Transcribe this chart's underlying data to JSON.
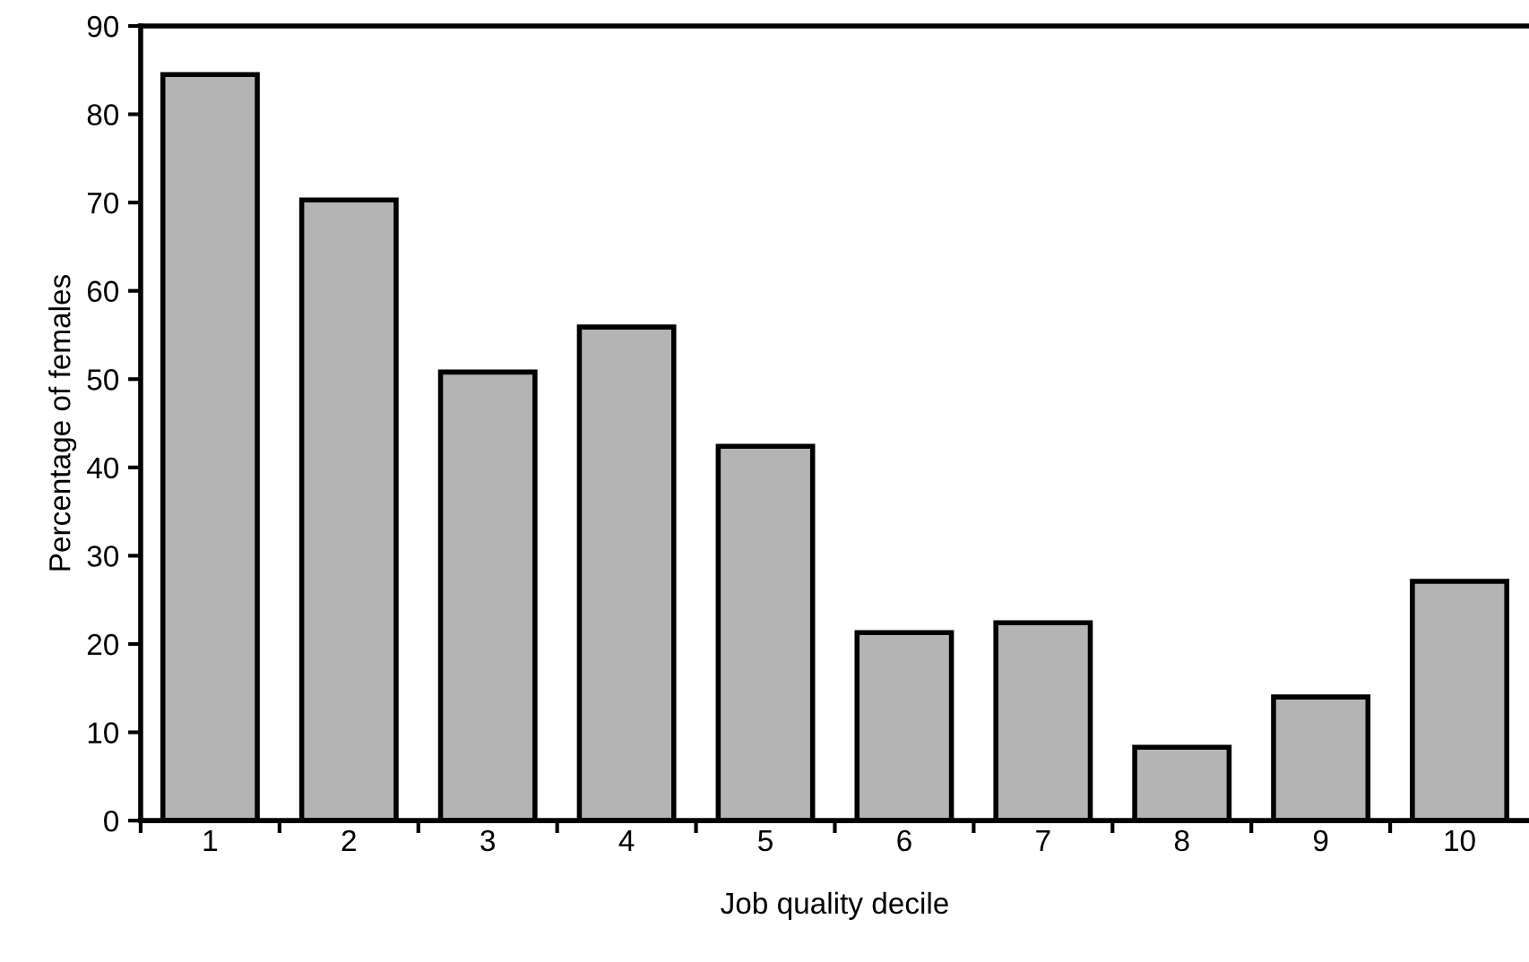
{
  "chart_data": {
    "type": "bar",
    "xlabel": "Job quality decile",
    "ylabel": "Percentage of females",
    "categories": [
      "1",
      "2",
      "3",
      "4",
      "5",
      "6",
      "7",
      "8",
      "9",
      "10"
    ],
    "values": [
      84.5,
      70.3,
      50.8,
      55.9,
      42.4,
      21.3,
      22.4,
      8.3,
      14.0,
      27.1
    ],
    "color": "#b4b4b4",
    "ylim": [
      0,
      90
    ],
    "yticks": [
      0,
      10,
      20,
      30,
      40,
      50,
      60,
      70,
      80,
      90
    ],
    "grid": false
  }
}
